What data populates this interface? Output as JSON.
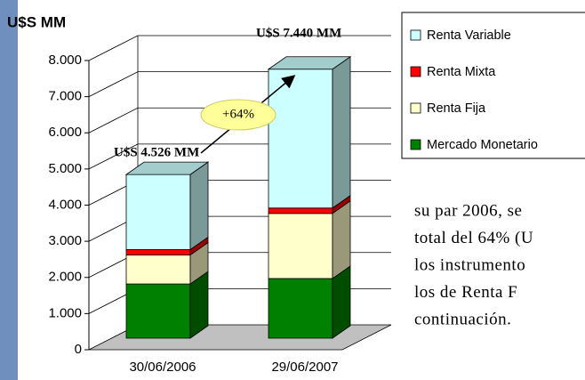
{
  "chart_data": {
    "type": "bar3d_stacked",
    "y_axis_label": "U$S MM",
    "categories": [
      "30/06/2006",
      "29/06/2007"
    ],
    "series": [
      {
        "name": "Mercado Monetario",
        "color": "#008000",
        "values": [
          1500,
          1650
        ]
      },
      {
        "name": "Renta Fija",
        "color": "#ffffcc",
        "values": [
          800,
          1800
        ]
      },
      {
        "name": "Renta Mixta",
        "color": "#ff0000",
        "values": [
          150,
          150
        ]
      },
      {
        "name": "Renta Variable",
        "color": "#ccffff",
        "values": [
          2076,
          3840
        ]
      }
    ],
    "ylim": [
      0,
      8000
    ],
    "yticks": [
      0,
      {
        "value": 1000,
        "label": "1.000"
      },
      {
        "value": 2000,
        "label": "2.000"
      },
      {
        "value": 3000,
        "label": "3.000"
      },
      {
        "value": 4000,
        "label": "4.000"
      },
      {
        "value": 5000,
        "label": "5.000"
      },
      {
        "value": 6000,
        "label": "6.000"
      },
      {
        "value": 7000,
        "label": "7.000"
      },
      {
        "value": 8000,
        "label": "8.000"
      }
    ],
    "grid": true,
    "annotations": [
      "U$S 4.526 MM",
      "U$S 7.440 MM",
      "+64%"
    ]
  },
  "body_text_lines": [
    "su par 2006, se",
    "total del 64% (U",
    "los instrumento",
    "los de  Renta F",
    "continuación."
  ]
}
